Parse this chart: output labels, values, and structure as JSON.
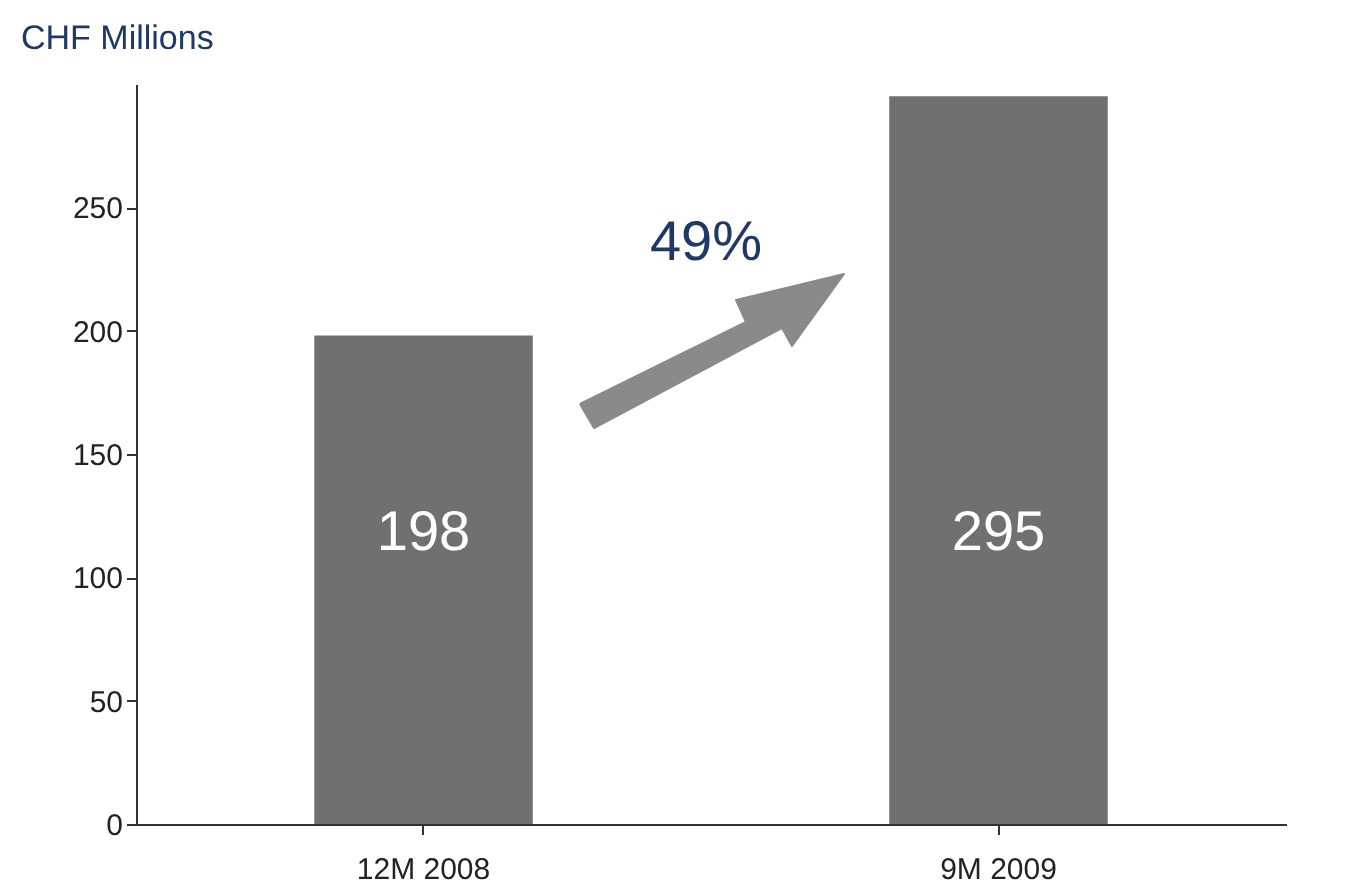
{
  "chart_data": {
    "type": "bar",
    "ylabel": "CHF Millions",
    "categories": [
      "12M 2008",
      "9M 2009"
    ],
    "values": [
      198,
      295
    ],
    "color": "#707070",
    "data_labels": true,
    "ylim": [
      0,
      300
    ],
    "yticks": [
      0,
      50,
      100,
      150,
      200,
      250
    ],
    "grid": false,
    "annotations": [
      "49%"
    ]
  }
}
